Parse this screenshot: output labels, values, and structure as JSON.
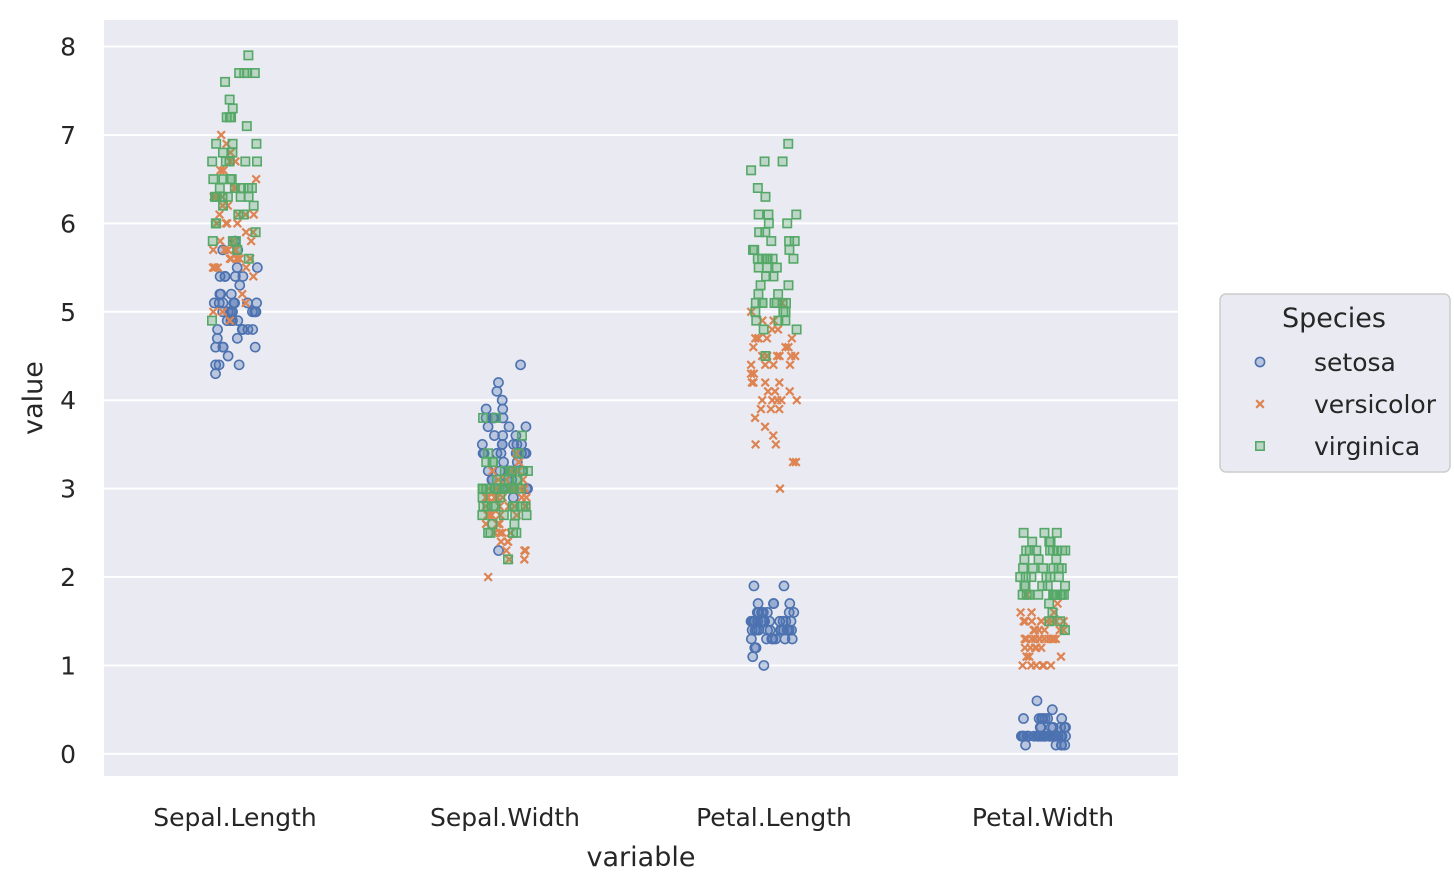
{
  "chart_data": {
    "type": "scatter",
    "subtype": "strip",
    "xlabel": "variable",
    "ylabel": "value",
    "categories": [
      "Sepal.Length",
      "Sepal.Width",
      "Petal.Length",
      "Petal.Width"
    ],
    "ylim": [
      -0.25,
      8.3
    ],
    "yticks": [
      "0",
      "1",
      "2",
      "3",
      "4",
      "5",
      "6",
      "7",
      "8"
    ],
    "grid": true,
    "legend": {
      "title": "Species",
      "position": "right"
    },
    "series": [
      {
        "name": "setosa",
        "marker": "circle",
        "color": "#4c72b0",
        "data": {
          "Sepal.Length": [
            5.1,
            4.9,
            4.7,
            4.6,
            5.0,
            5.4,
            4.6,
            5.0,
            4.4,
            4.9,
            5.4,
            4.8,
            4.8,
            4.3,
            5.8,
            5.7,
            5.4,
            5.1,
            5.7,
            5.1,
            5.4,
            5.1,
            4.6,
            5.1,
            4.8,
            5.0,
            5.0,
            5.2,
            5.2,
            4.7,
            4.8,
            5.4,
            5.2,
            5.5,
            4.9,
            5.0,
            5.5,
            4.9,
            4.4,
            5.1,
            5.0,
            4.5,
            4.4,
            5.0,
            5.1,
            4.8,
            5.1,
            4.6,
            5.3,
            5.0
          ],
          "Sepal.Width": [
            3.5,
            3.0,
            3.2,
            3.1,
            3.6,
            3.9,
            3.4,
            3.4,
            2.9,
            3.1,
            3.7,
            3.4,
            3.0,
            3.0,
            4.0,
            4.4,
            3.9,
            3.5,
            3.8,
            3.8,
            3.4,
            3.7,
            3.6,
            3.3,
            3.4,
            3.0,
            3.4,
            3.5,
            3.4,
            3.2,
            3.1,
            3.4,
            4.1,
            4.2,
            3.1,
            3.2,
            3.5,
            3.6,
            3.0,
            3.4,
            3.5,
            2.3,
            3.2,
            3.5,
            3.8,
            3.0,
            3.8,
            3.2,
            3.7,
            3.3
          ],
          "Petal.Length": [
            1.4,
            1.4,
            1.3,
            1.5,
            1.4,
            1.7,
            1.4,
            1.5,
            1.4,
            1.5,
            1.5,
            1.6,
            1.4,
            1.1,
            1.2,
            1.5,
            1.3,
            1.4,
            1.7,
            1.5,
            1.7,
            1.5,
            1.0,
            1.7,
            1.9,
            1.6,
            1.6,
            1.5,
            1.4,
            1.6,
            1.6,
            1.5,
            1.5,
            1.4,
            1.5,
            1.2,
            1.3,
            1.4,
            1.3,
            1.5,
            1.3,
            1.3,
            1.3,
            1.6,
            1.9,
            1.4,
            1.6,
            1.4,
            1.5,
            1.4
          ],
          "Petal.Width": [
            0.2,
            0.2,
            0.2,
            0.2,
            0.2,
            0.4,
            0.3,
            0.2,
            0.2,
            0.1,
            0.2,
            0.2,
            0.1,
            0.1,
            0.2,
            0.4,
            0.4,
            0.3,
            0.3,
            0.3,
            0.2,
            0.4,
            0.2,
            0.5,
            0.2,
            0.2,
            0.4,
            0.2,
            0.2,
            0.2,
            0.2,
            0.4,
            0.1,
            0.2,
            0.2,
            0.2,
            0.2,
            0.1,
            0.2,
            0.2,
            0.3,
            0.3,
            0.2,
            0.6,
            0.4,
            0.3,
            0.2,
            0.2,
            0.2,
            0.2
          ]
        }
      },
      {
        "name": "versicolor",
        "marker": "x",
        "color": "#dd8452",
        "data": {
          "Sepal.Length": [
            7.0,
            6.4,
            6.9,
            5.5,
            6.5,
            5.7,
            6.3,
            4.9,
            6.6,
            5.2,
            5.0,
            5.9,
            6.0,
            6.1,
            5.6,
            6.7,
            5.6,
            5.8,
            6.2,
            5.6,
            5.9,
            6.1,
            6.3,
            6.1,
            6.4,
            6.6,
            6.8,
            6.7,
            6.0,
            5.7,
            5.5,
            5.5,
            5.8,
            6.0,
            5.4,
            6.0,
            6.7,
            6.3,
            5.6,
            5.5,
            5.5,
            6.1,
            5.8,
            5.0,
            5.6,
            5.7,
            5.7,
            6.2,
            5.1,
            5.7
          ],
          "Sepal.Width": [
            3.2,
            3.2,
            3.1,
            2.3,
            2.8,
            2.8,
            3.3,
            2.4,
            2.9,
            2.7,
            2.0,
            3.0,
            2.2,
            2.9,
            2.9,
            3.1,
            3.0,
            2.7,
            2.2,
            2.5,
            3.2,
            2.8,
            2.5,
            2.8,
            2.9,
            3.0,
            2.8,
            3.0,
            2.9,
            2.6,
            2.4,
            2.4,
            2.7,
            2.7,
            3.0,
            3.4,
            3.1,
            2.3,
            3.0,
            2.5,
            2.6,
            3.0,
            2.6,
            2.3,
            2.7,
            3.0,
            2.9,
            2.9,
            2.5,
            2.8
          ],
          "Petal.Length": [
            4.7,
            4.5,
            4.9,
            4.0,
            4.6,
            4.5,
            4.7,
            3.3,
            4.6,
            3.9,
            3.5,
            4.2,
            4.0,
            4.7,
            3.6,
            4.4,
            4.5,
            4.1,
            4.5,
            3.9,
            4.8,
            4.0,
            4.9,
            4.7,
            4.3,
            4.4,
            4.8,
            5.0,
            4.5,
            3.5,
            3.8,
            3.7,
            3.9,
            5.1,
            4.5,
            4.5,
            4.7,
            4.4,
            4.1,
            4.0,
            4.4,
            4.6,
            4.0,
            3.3,
            4.2,
            4.2,
            4.2,
            4.3,
            3.0,
            4.1
          ],
          "Petal.Width": [
            1.4,
            1.5,
            1.5,
            1.3,
            1.5,
            1.3,
            1.6,
            1.0,
            1.3,
            1.4,
            1.0,
            1.5,
            1.0,
            1.4,
            1.3,
            1.4,
            1.5,
            1.0,
            1.5,
            1.1,
            1.8,
            1.3,
            1.5,
            1.2,
            1.3,
            1.4,
            1.4,
            1.7,
            1.5,
            1.0,
            1.1,
            1.0,
            1.2,
            1.6,
            1.5,
            1.6,
            1.5,
            1.3,
            1.3,
            1.3,
            1.2,
            1.4,
            1.2,
            1.0,
            1.3,
            1.2,
            1.3,
            1.3,
            1.1,
            1.3
          ]
        }
      },
      {
        "name": "virginica",
        "marker": "square",
        "color": "#55a868",
        "data": {
          "Sepal.Length": [
            6.3,
            5.8,
            7.1,
            6.3,
            6.5,
            7.6,
            4.9,
            7.3,
            6.7,
            7.2,
            6.5,
            6.4,
            6.8,
            5.7,
            5.8,
            6.4,
            6.5,
            7.7,
            7.7,
            6.0,
            6.9,
            5.6,
            7.7,
            6.3,
            6.7,
            7.2,
            6.2,
            6.1,
            6.4,
            7.2,
            7.4,
            7.9,
            6.4,
            6.3,
            6.1,
            7.7,
            6.3,
            6.4,
            6.0,
            6.9,
            6.7,
            6.9,
            5.8,
            6.8,
            6.7,
            6.7,
            6.3,
            6.5,
            6.2,
            5.9
          ],
          "Sepal.Width": [
            3.3,
            2.7,
            3.0,
            2.9,
            3.0,
            3.0,
            2.5,
            2.9,
            2.5,
            3.6,
            3.2,
            2.7,
            3.0,
            2.5,
            2.8,
            3.2,
            3.0,
            3.8,
            2.6,
            2.2,
            3.2,
            2.8,
            2.8,
            2.7,
            3.3,
            3.2,
            2.8,
            3.0,
            2.8,
            3.0,
            2.8,
            3.8,
            2.8,
            2.8,
            2.6,
            3.0,
            3.4,
            3.1,
            3.0,
            3.1,
            3.1,
            3.1,
            2.7,
            3.2,
            3.3,
            3.0,
            2.5,
            3.0,
            3.4,
            3.0
          ],
          "Petal.Length": [
            6.0,
            5.1,
            5.9,
            5.6,
            5.8,
            6.6,
            4.5,
            6.3,
            5.8,
            6.1,
            5.1,
            5.3,
            5.5,
            5.0,
            5.1,
            5.3,
            5.5,
            6.7,
            6.9,
            5.0,
            5.7,
            4.9,
            6.7,
            4.9,
            5.7,
            6.0,
            4.8,
            4.9,
            5.6,
            5.8,
            6.1,
            6.4,
            5.6,
            5.1,
            5.6,
            6.1,
            5.6,
            5.5,
            4.8,
            5.4,
            5.6,
            5.1,
            5.1,
            5.9,
            5.7,
            5.2,
            5.0,
            5.2,
            5.4,
            5.1
          ],
          "Petal.Width": [
            2.5,
            1.9,
            2.1,
            1.8,
            2.2,
            2.1,
            1.7,
            1.8,
            1.8,
            2.5,
            2.0,
            1.9,
            2.1,
            2.0,
            2.4,
            2.3,
            1.8,
            2.2,
            2.3,
            1.5,
            2.3,
            2.0,
            2.0,
            1.8,
            2.1,
            1.8,
            1.8,
            1.8,
            2.1,
            1.6,
            1.9,
            2.0,
            2.2,
            1.5,
            1.4,
            2.3,
            2.4,
            1.8,
            1.8,
            2.1,
            2.4,
            2.3,
            1.9,
            2.3,
            2.5,
            2.3,
            1.9,
            2.0,
            2.3,
            1.8
          ]
        }
      }
    ]
  }
}
